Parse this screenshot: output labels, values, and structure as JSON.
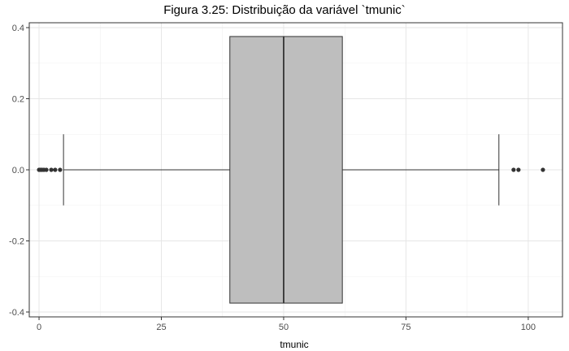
{
  "chart_data": {
    "type": "boxplot",
    "title": "Figura 3.25: Distribuição da variável `tmunic`",
    "xlabel": "tmunic",
    "ylabel": "",
    "xlim": [
      -2,
      107
    ],
    "ylim": [
      -0.4,
      0.4
    ],
    "x_ticks": [
      0,
      25,
      50,
      75,
      100
    ],
    "y_ticks": [
      -0.4,
      -0.2,
      0.0,
      0.2,
      0.4
    ],
    "x_tick_labels": [
      "0",
      "25",
      "50",
      "75",
      "100"
    ],
    "y_tick_labels": [
      "-0.4",
      "-0.2",
      "0.0",
      "0.2",
      "0.4"
    ],
    "grid": true,
    "box": {
      "q1": 39,
      "median": 50,
      "q3": 62,
      "whisker_low": 5,
      "whisker_high": 94,
      "y_center": 0.0,
      "y_half_height": 0.375,
      "fill_color": "#bebebe",
      "line_color": "#333333"
    },
    "outliers": [
      0,
      0.3,
      0.6,
      1,
      1.5,
      2.5,
      3.3,
      4.3,
      97,
      98,
      103
    ],
    "outlier_color": "#333333"
  }
}
